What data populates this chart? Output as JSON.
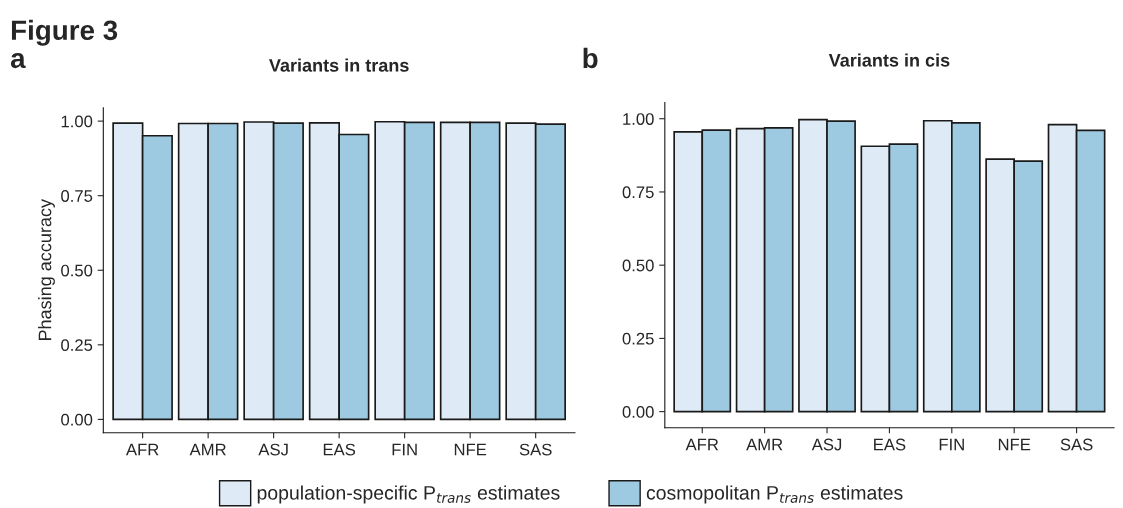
{
  "chart_data": [
    {
      "type": "bar",
      "title": "Variants in trans",
      "ylabel": "Phasing accuracy",
      "annotations": [
        "Figure 3",
        "a"
      ],
      "categories": [
        "AFR",
        "AMR",
        "ASJ",
        "EAS",
        "FIN",
        "NFE",
        "SAS"
      ],
      "series": [
        {
          "name": "population-specific P$_{trans}$ estimates",
          "color": "#deebf7",
          "values": [
            0.993,
            0.992,
            0.997,
            0.994,
            0.998,
            0.996,
            0.993
          ]
        },
        {
          "name": "cosmopolitan P$_{trans}$ estimates",
          "color": "#9ecae1",
          "values": [
            0.951,
            0.992,
            0.993,
            0.955,
            0.996,
            0.996,
            0.99
          ]
        }
      ],
      "ylim": [
        -0.045,
        1.045
      ],
      "yticks": [
        {
          "value": 0,
          "label": "0.00"
        },
        {
          "value": 0.25,
          "label": "0.25"
        },
        {
          "value": 0.5,
          "label": "0.50"
        },
        {
          "value": 0.75,
          "label": "0.75"
        },
        {
          "value": 1,
          "label": "1.00"
        }
      ],
      "legend": "bottom",
      "grid": false
    },
    {
      "type": "bar",
      "title": "Variants in cis",
      "annotations": [
        "b"
      ],
      "categories": [
        "AFR",
        "AMR",
        "ASJ",
        "EAS",
        "FIN",
        "NFE",
        "SAS"
      ],
      "series": [
        {
          "color": "#deebf7",
          "values": [
            0.955,
            0.966,
            0.997,
            0.906,
            0.993,
            0.862,
            0.98
          ]
        },
        {
          "color": "#9ecae1",
          "values": [
            0.961,
            0.969,
            0.992,
            0.913,
            0.986,
            0.855,
            0.96
          ]
        }
      ],
      "ylim": [
        -0.055,
        1.055
      ],
      "yticks": [
        {
          "value": 0,
          "label": "0.00"
        },
        {
          "value": 0.25,
          "label": "0.25"
        },
        {
          "value": 0.5,
          "label": "0.50"
        },
        {
          "value": 0.75,
          "label": "0.75"
        },
        {
          "value": 1,
          "label": "1.00"
        }
      ],
      "grid": false
    }
  ]
}
